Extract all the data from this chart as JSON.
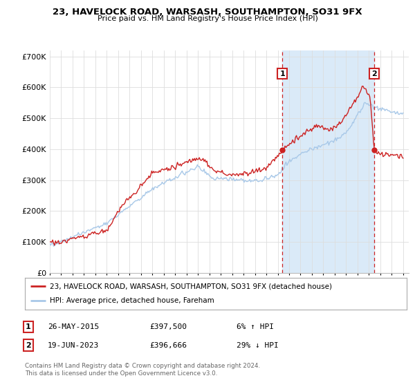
{
  "title": "23, HAVELOCK ROAD, WARSASH, SOUTHAMPTON, SO31 9FX",
  "subtitle": "Price paid vs. HM Land Registry's House Price Index (HPI)",
  "ylim": [
    0,
    720000
  ],
  "xlim_start": 1995.0,
  "xlim_end": 2026.5,
  "yticks": [
    0,
    100000,
    200000,
    300000,
    400000,
    500000,
    600000,
    700000
  ],
  "ytick_labels": [
    "£0",
    "£100K",
    "£200K",
    "£300K",
    "£400K",
    "£500K",
    "£600K",
    "£700K"
  ],
  "xticks": [
    1995,
    1996,
    1997,
    1998,
    1999,
    2000,
    2001,
    2002,
    2003,
    2004,
    2005,
    2006,
    2007,
    2008,
    2009,
    2010,
    2011,
    2012,
    2013,
    2014,
    2015,
    2016,
    2017,
    2018,
    2019,
    2020,
    2021,
    2022,
    2023,
    2024,
    2025,
    2026
  ],
  "hpi_color": "#a8c8e8",
  "price_color": "#cc2222",
  "marker_color": "#cc2222",
  "vline_color": "#cc2222",
  "shade_color": "#daeaf8",
  "background_color": "#ffffff",
  "grid_color": "#dddddd",
  "transaction1_date": 2015.4,
  "transaction1_price": 397500,
  "transaction2_date": 2023.47,
  "transaction2_price": 396666,
  "legend_line1": "23, HAVELOCK ROAD, WARSASH, SOUTHAMPTON, SO31 9FX (detached house)",
  "legend_line2": "HPI: Average price, detached house, Fareham",
  "table_row1": [
    "1",
    "26-MAY-2015",
    "£397,500",
    "6% ↑ HPI"
  ],
  "table_row2": [
    "2",
    "19-JUN-2023",
    "£396,666",
    "29% ↓ HPI"
  ],
  "footer1": "Contains HM Land Registry data © Crown copyright and database right 2024.",
  "footer2": "This data is licensed under the Open Government Licence v3.0."
}
